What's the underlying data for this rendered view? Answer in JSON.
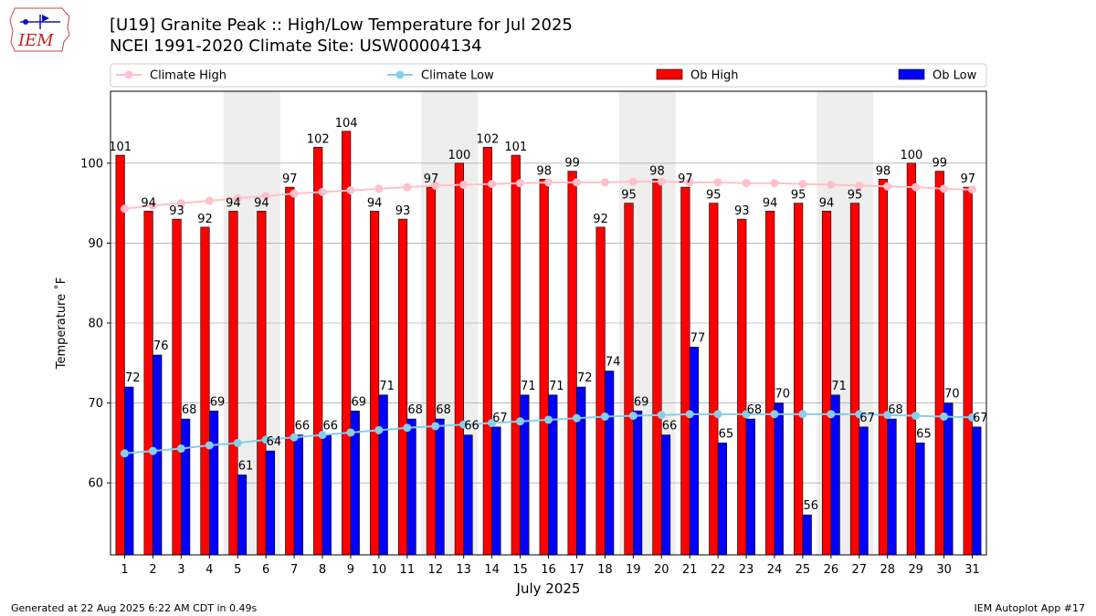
{
  "header": {
    "title_line1": "[U19] Granite Peak :: High/Low Temperature for Jul 2025",
    "title_line2": "NCEI 1991-2020 Climate Site: USW00004134",
    "logo_text": "IEM"
  },
  "footer": {
    "left": "Generated at 22 Aug 2025 6:22 AM CDT in 0.49s",
    "right": "IEM Autoplot App #17"
  },
  "colors": {
    "ob_high": "#ff0000",
    "ob_low": "#0000ff",
    "climate_high": "#ffc0cb",
    "climate_low": "#87ceeb",
    "weekend_shade": "#eeeeee",
    "grid": "#b0b0b0"
  },
  "chart_data": {
    "type": "bar",
    "xlabel": "July 2025",
    "ylabel": "Temperature ˚F",
    "ylim": [
      51,
      109
    ],
    "yticks": [
      60,
      70,
      80,
      90,
      100
    ],
    "grid": "horizontal",
    "legend_position": "top",
    "categories": [
      "1",
      "2",
      "3",
      "4",
      "5",
      "6",
      "7",
      "8",
      "9",
      "10",
      "11",
      "12",
      "13",
      "14",
      "15",
      "16",
      "17",
      "18",
      "19",
      "20",
      "21",
      "22",
      "23",
      "24",
      "25",
      "26",
      "27",
      "28",
      "29",
      "30",
      "31"
    ],
    "shaded_weekend_days": [
      [
        5,
        6
      ],
      [
        12,
        13
      ],
      [
        19,
        20
      ],
      [
        26,
        27
      ]
    ],
    "bar_series": [
      {
        "name": "Ob High",
        "values": [
          101,
          94,
          93,
          92,
          94,
          94,
          97,
          102,
          104,
          94,
          93,
          97,
          100,
          102,
          101,
          98,
          99,
          92,
          95,
          98,
          97,
          95,
          93,
          94,
          95,
          94,
          95,
          98,
          100,
          99,
          97
        ]
      },
      {
        "name": "Ob Low",
        "values": [
          72,
          76,
          68,
          69,
          61,
          64,
          66,
          66,
          69,
          71,
          68,
          68,
          66,
          67,
          71,
          71,
          72,
          74,
          69,
          66,
          77,
          65,
          68,
          70,
          56,
          71,
          67,
          68,
          65,
          70,
          67
        ]
      }
    ],
    "line_series": [
      {
        "name": "Climate High",
        "values": [
          94.3,
          94.7,
          95.0,
          95.3,
          95.6,
          95.9,
          96.2,
          96.4,
          96.6,
          96.8,
          97.0,
          97.2,
          97.3,
          97.4,
          97.5,
          97.6,
          97.6,
          97.6,
          97.7,
          97.7,
          97.6,
          97.6,
          97.5,
          97.5,
          97.4,
          97.3,
          97.2,
          97.1,
          97.0,
          96.8,
          96.7
        ]
      },
      {
        "name": "Climate Low",
        "values": [
          63.7,
          64.0,
          64.3,
          64.7,
          65.0,
          65.4,
          65.7,
          66.0,
          66.3,
          66.6,
          66.9,
          67.1,
          67.3,
          67.5,
          67.7,
          67.9,
          68.1,
          68.3,
          68.4,
          68.5,
          68.6,
          68.6,
          68.6,
          68.6,
          68.6,
          68.6,
          68.6,
          68.5,
          68.4,
          68.3,
          68.2
        ]
      }
    ]
  }
}
